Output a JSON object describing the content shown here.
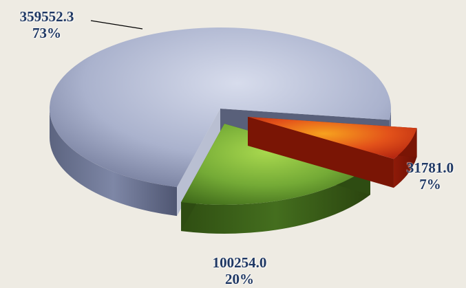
{
  "chart_data": {
    "type": "pie",
    "style": "3d-exploded",
    "legend": "none",
    "slices": [
      {
        "value": 359552.3,
        "percent": "73%",
        "color": "#9DA6C4"
      },
      {
        "value": 31781.0,
        "percent": "7%",
        "color": "#E2461A"
      },
      {
        "value": 100254.0,
        "percent": "20%",
        "color": "#6FA337"
      }
    ],
    "data_labels": [
      {
        "value": "359552.3",
        "percent": "73%"
      },
      {
        "value": "31781.0",
        "percent": "7%"
      },
      {
        "value": "100254.0",
        "percent": "20%"
      }
    ]
  }
}
